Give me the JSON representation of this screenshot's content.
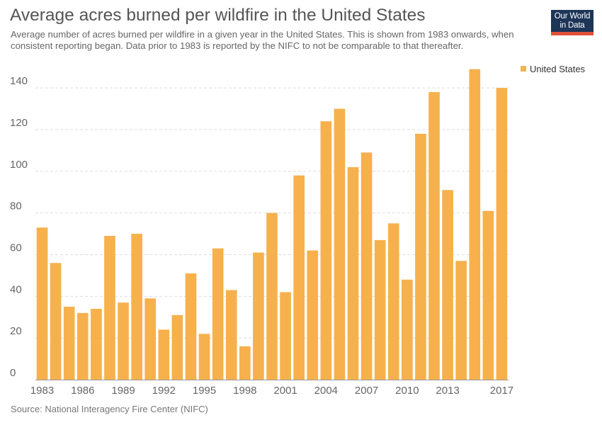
{
  "header": {
    "title": "Average acres burned per wildfire in the United States",
    "subtitle": "Average number of acres burned per wildfire in a given year in the United States. This is shown from 1983 onwards, when consistent reporting began. Data prior to 1983 is reported by the NIFC to not be comparable to that thereafter.",
    "logo_line1": "Our World",
    "logo_line2": "in Data"
  },
  "footer": {
    "source": "Source: National Interagency Fire Center (NIFC)"
  },
  "colors": {
    "bar": "#f6b14d",
    "grid": "#dddddd",
    "logo_bg": "#1d3557",
    "logo_accent": "#e0503a"
  },
  "chart_data": {
    "type": "bar",
    "categories": [
      "1983",
      "1984",
      "1985",
      "1986",
      "1987",
      "1988",
      "1989",
      "1990",
      "1991",
      "1992",
      "1993",
      "1994",
      "1995",
      "1996",
      "1997",
      "1998",
      "1999",
      "2000",
      "2001",
      "2002",
      "2003",
      "2004",
      "2005",
      "2006",
      "2007",
      "2008",
      "2009",
      "2010",
      "2011",
      "2012",
      "2013",
      "2014",
      "2015",
      "2016",
      "2017"
    ],
    "x_tick_labels": [
      "1983",
      "1986",
      "1989",
      "1992",
      "1995",
      "1998",
      "2001",
      "2004",
      "2007",
      "2010",
      "2013",
      "2017"
    ],
    "series": [
      {
        "name": "United States",
        "values": [
          73,
          56,
          35,
          32,
          34,
          69,
          37,
          70,
          39,
          24,
          31,
          51,
          22,
          63,
          43,
          16,
          61,
          80,
          42,
          98,
          62,
          124,
          130,
          102,
          109,
          67,
          75,
          48,
          118,
          138,
          91,
          57,
          149,
          81,
          140
        ]
      }
    ],
    "y_ticks": [
      0,
      20,
      40,
      60,
      80,
      100,
      120,
      140
    ],
    "ylim": [
      0,
      155
    ],
    "grid": true,
    "legend_position": "top-right"
  }
}
